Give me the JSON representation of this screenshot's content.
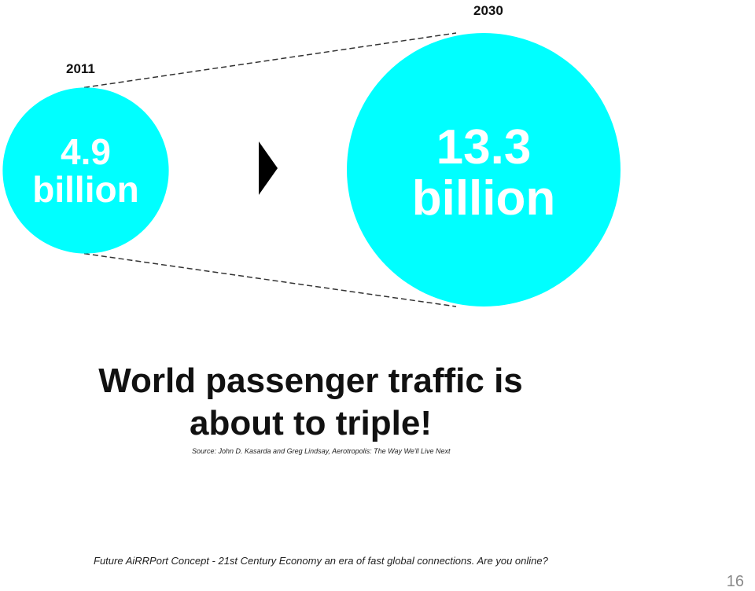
{
  "slide": {
    "headline": "World passenger traffic is about to triple!",
    "source": "Source: John D. Kasarda and Greg Lindsay, Aerotropolis: The Way We'll Live Next",
    "footer": "Future AiRRPort Concept - 21st Century Economy an era of fast global connections. Are you online?",
    "page_number": "16",
    "colors": {
      "circle": "#00FFFF",
      "text": "#111111",
      "arrow": "#000000"
    },
    "icons": {
      "arrow": "play-arrow-icon"
    }
  },
  "chart_data": {
    "type": "bubble",
    "unit": "billion",
    "points": [
      {
        "year": "2011",
        "value": 4.9,
        "label_value": "4.9",
        "label_unit": "billion"
      },
      {
        "year": "2030",
        "value": 13.3,
        "label_value": "13.3",
        "label_unit": "billion"
      }
    ]
  }
}
